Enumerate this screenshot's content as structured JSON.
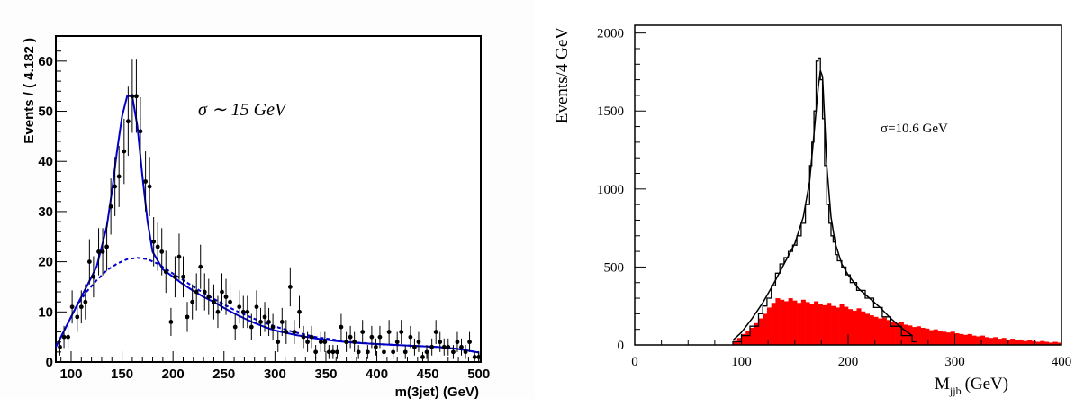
{
  "chart_data": [
    {
      "type": "scatter",
      "title": "",
      "xlabel": "m(3jet) (GeV)",
      "ylabel": "Events / ( 4.182 )",
      "xlim": [
        85,
        502
      ],
      "ylim": [
        0,
        65
      ],
      "x_ticks": [
        100,
        150,
        200,
        250,
        300,
        350,
        400,
        450,
        500
      ],
      "y_ticks": [
        0,
        10,
        20,
        30,
        40,
        50,
        60
      ],
      "annotation": "σ ∼ 15 GeV",
      "grid": false,
      "legend": "none",
      "colors": {
        "fit": "#0000cc",
        "points": "#000000",
        "background": "#ffffff"
      },
      "series": [
        {
          "kind": "points",
          "x": [
            89,
            93,
            97,
            101,
            106,
            110,
            114,
            118,
            122,
            127,
            131,
            135,
            139,
            143,
            147,
            152,
            156,
            160,
            164,
            168,
            173,
            177,
            181,
            185,
            189,
            193,
            198,
            202,
            206,
            210,
            214,
            219,
            223,
            227,
            231,
            235,
            240,
            244,
            248,
            252,
            256,
            261,
            265,
            269,
            273,
            277,
            282,
            286,
            290,
            294,
            298,
            303,
            307,
            311,
            315,
            319,
            324,
            328,
            332,
            336,
            340,
            345,
            349,
            353,
            357,
            361,
            365,
            370,
            374,
            378,
            382,
            386,
            391,
            395,
            399,
            403,
            407,
            412,
            416,
            420,
            424,
            428,
            433,
            437,
            441,
            445,
            449,
            454,
            458,
            462,
            466,
            470,
            475,
            479,
            483,
            487,
            491,
            496,
            500
          ],
          "y": [
            3,
            5,
            5,
            11,
            9,
            11,
            12,
            20,
            17,
            22,
            22,
            23,
            31,
            35,
            37,
            42,
            48,
            53,
            53,
            46,
            36,
            35,
            24,
            23,
            22,
            18,
            8,
            17,
            21,
            17,
            9,
            12,
            14,
            19,
            14,
            13,
            12,
            10,
            14,
            13,
            12,
            7,
            11,
            10,
            10,
            7,
            11,
            8,
            9,
            8,
            7,
            4,
            8,
            6,
            15,
            6,
            10,
            5,
            4,
            5,
            2,
            4,
            4,
            2,
            2,
            2,
            7,
            4,
            5,
            4,
            2,
            6,
            2,
            5,
            3,
            5,
            2,
            6,
            2,
            4,
            6,
            2,
            5,
            3,
            4,
            1,
            2,
            3,
            6,
            4,
            3,
            3,
            2,
            4,
            3,
            2,
            4,
            1,
            1
          ],
          "err": [
            1.7,
            2.2,
            2.2,
            3.3,
            3,
            3.3,
            3.5,
            4.5,
            4.1,
            4.7,
            4.7,
            4.8,
            5.6,
            5.9,
            6.1,
            6.5,
            6.9,
            7.3,
            7.3,
            6.8,
            6,
            5.9,
            4.9,
            4.8,
            4.7,
            4.2,
            2.8,
            4.1,
            4.6,
            4.1,
            3,
            3.5,
            3.7,
            4.4,
            3.7,
            3.6,
            3.5,
            3.2,
            3.7,
            3.6,
            3.5,
            2.6,
            3.3,
            3.2,
            3.2,
            2.6,
            3.3,
            2.8,
            3,
            2.8,
            2.6,
            2,
            2.8,
            2.4,
            3.9,
            2.4,
            3.2,
            2.2,
            2,
            2.2,
            1.4,
            2,
            2,
            1.4,
            1.4,
            1.4,
            2.6,
            2,
            2.2,
            2,
            1.4,
            2.4,
            1.4,
            2.2,
            1.7,
            2.2,
            1.4,
            2.4,
            1.4,
            2,
            2.4,
            1.4,
            2.2,
            1.7,
            2,
            1,
            1.4,
            1.7,
            2.4,
            2,
            1.7,
            1.7,
            1.4,
            2,
            1.7,
            1.4,
            2,
            1,
            1
          ]
        },
        {
          "kind": "line",
          "name": "",
          "style": "solid",
          "x": [
            85,
            95,
            105,
            115,
            125,
            135,
            140,
            145,
            150,
            155,
            160,
            165,
            170,
            175,
            180,
            190,
            200,
            210,
            220,
            230,
            240,
            250,
            260,
            270,
            280,
            290,
            300,
            320,
            340,
            360,
            380,
            400,
            420,
            440,
            460,
            480,
            500
          ],
          "y": [
            3,
            7,
            11,
            15,
            19,
            27,
            34,
            42,
            49,
            53,
            53,
            47,
            37,
            28,
            22,
            18.5,
            17,
            15.5,
            14.2,
            13,
            12,
            10.8,
            9.7,
            8.7,
            7.8,
            7,
            6.3,
            5.4,
            4.7,
            4.2,
            3.8,
            3.6,
            3.4,
            3.2,
            3,
            2.6,
            1.9
          ]
        },
        {
          "kind": "line",
          "name": "",
          "style": "dashed",
          "x": [
            85,
            95,
            105,
            115,
            125,
            135,
            145,
            155,
            165,
            175,
            185,
            195,
            205,
            215,
            225,
            240,
            260,
            280,
            300,
            320,
            340,
            360,
            380,
            400,
            420,
            440,
            460,
            480,
            500
          ],
          "y": [
            3,
            7,
            11,
            14,
            16.3,
            18.3,
            19.6,
            20.5,
            20.8,
            20.5,
            19.6,
            18.3,
            17,
            15.7,
            14.4,
            12.6,
            10.4,
            8.6,
            7.1,
            5.9,
            5,
            4.4,
            3.9,
            3.6,
            3.4,
            3.2,
            3,
            2.6,
            1.9
          ]
        }
      ]
    },
    {
      "type": "area",
      "title": "",
      "xlabel": "M",
      "xlabel_sub": "jjb",
      "xlabel_unit": "(GeV)",
      "ylabel": "Events/4 GeV",
      "xlim": [
        0,
        400
      ],
      "ylim": [
        0,
        2050
      ],
      "x_ticks": [
        0,
        100,
        200,
        300,
        400
      ],
      "y_ticks": [
        0,
        500,
        1000,
        1500,
        2000
      ],
      "annotation": "σ=10.6 GeV",
      "grid": false,
      "legend": "none",
      "colors": {
        "fill": "#ff0000",
        "line": "#000000",
        "background": "#ffffff"
      },
      "series": [
        {
          "kind": "histogram",
          "name": "",
          "edges_start": 92,
          "bin_width": 4,
          "values": [
            25,
            45,
            70,
            90,
            110,
            140,
            170,
            200,
            240,
            270,
            300,
            290,
            280,
            300,
            285,
            270,
            290,
            275,
            260,
            280,
            265,
            255,
            270,
            250,
            240,
            260,
            245,
            230,
            220,
            235,
            215,
            200,
            190,
            180,
            170,
            175,
            160,
            150,
            140,
            145,
            130,
            125,
            115,
            120,
            110,
            105,
            95,
            100,
            90,
            85,
            80,
            85,
            75,
            70,
            65,
            70,
            60,
            55,
            60,
            50,
            45,
            50,
            40,
            45,
            35,
            40,
            30,
            35,
            25,
            30,
            25,
            20,
            25,
            20,
            15,
            20,
            15
          ]
        },
        {
          "kind": "step",
          "name": "",
          "x": [
            92,
            100,
            108,
            116,
            120,
            124,
            128,
            132,
            136,
            140,
            144,
            148,
            152,
            156,
            160,
            164,
            166,
            168,
            170,
            172,
            174,
            176,
            178,
            180,
            182,
            184,
            186,
            188,
            190,
            194,
            198,
            202,
            208,
            216,
            224,
            232,
            240,
            250,
            260
          ],
          "y": [
            20,
            60,
            120,
            200,
            250,
            300,
            380,
            460,
            520,
            560,
            600,
            640,
            700,
            780,
            900,
            1150,
            1300,
            1500,
            1820,
            1840,
            1700,
            1450,
            1150,
            900,
            780,
            700,
            660,
            580,
            540,
            500,
            450,
            400,
            350,
            300,
            240,
            180,
            120,
            60,
            20
          ]
        },
        {
          "kind": "line",
          "name": "",
          "x": [
            92,
            100,
            110,
            120,
            130,
            140,
            150,
            158,
            164,
            168,
            172,
            174,
            176,
            178,
            180,
            184,
            188,
            194,
            200,
            210,
            220,
            230,
            240,
            250,
            260
          ],
          "y": [
            30,
            80,
            170,
            270,
            390,
            520,
            650,
            820,
            1050,
            1350,
            1650,
            1760,
            1720,
            1450,
            1150,
            820,
            650,
            520,
            450,
            360,
            300,
            240,
            170,
            110,
            60
          ]
        }
      ]
    }
  ]
}
